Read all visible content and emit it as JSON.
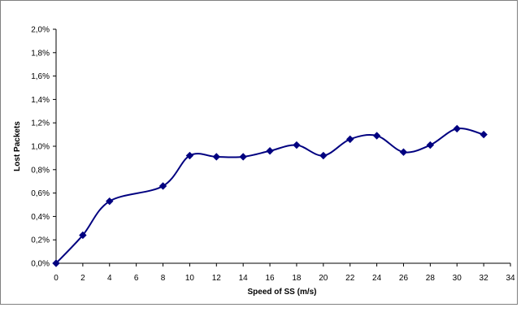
{
  "chart_data": {
    "type": "line",
    "title": "",
    "xlabel": "Speed of SS (m/s)",
    "ylabel": "Lost Packets",
    "xlim": [
      0,
      34
    ],
    "ylim": [
      0,
      0.02
    ],
    "x_ticks": [
      "0",
      "2",
      "4",
      "6",
      "8",
      "10",
      "12",
      "14",
      "16",
      "18",
      "20",
      "22",
      "24",
      "26",
      "28",
      "30",
      "32",
      "34"
    ],
    "y_ticks": [
      "0,0%",
      "0,2%",
      "0,4%",
      "0,6%",
      "0,8%",
      "1,0%",
      "1,2%",
      "1,4%",
      "1,6%",
      "1,8%",
      "2,0%"
    ],
    "grid": false,
    "smoothed": true,
    "series": [
      {
        "name": "",
        "color": "#000080",
        "marker": "diamond",
        "x": [
          0,
          2,
          4,
          8,
          10,
          12,
          14,
          16,
          18,
          20,
          22,
          24,
          26,
          28,
          30,
          32
        ],
        "y": [
          0.0,
          0.0024,
          0.0053,
          0.0066,
          0.0092,
          0.0091,
          0.0091,
          0.0096,
          0.0101,
          0.0092,
          0.0106,
          0.0109,
          0.0095,
          0.0101,
          0.0115,
          0.011
        ]
      }
    ]
  }
}
